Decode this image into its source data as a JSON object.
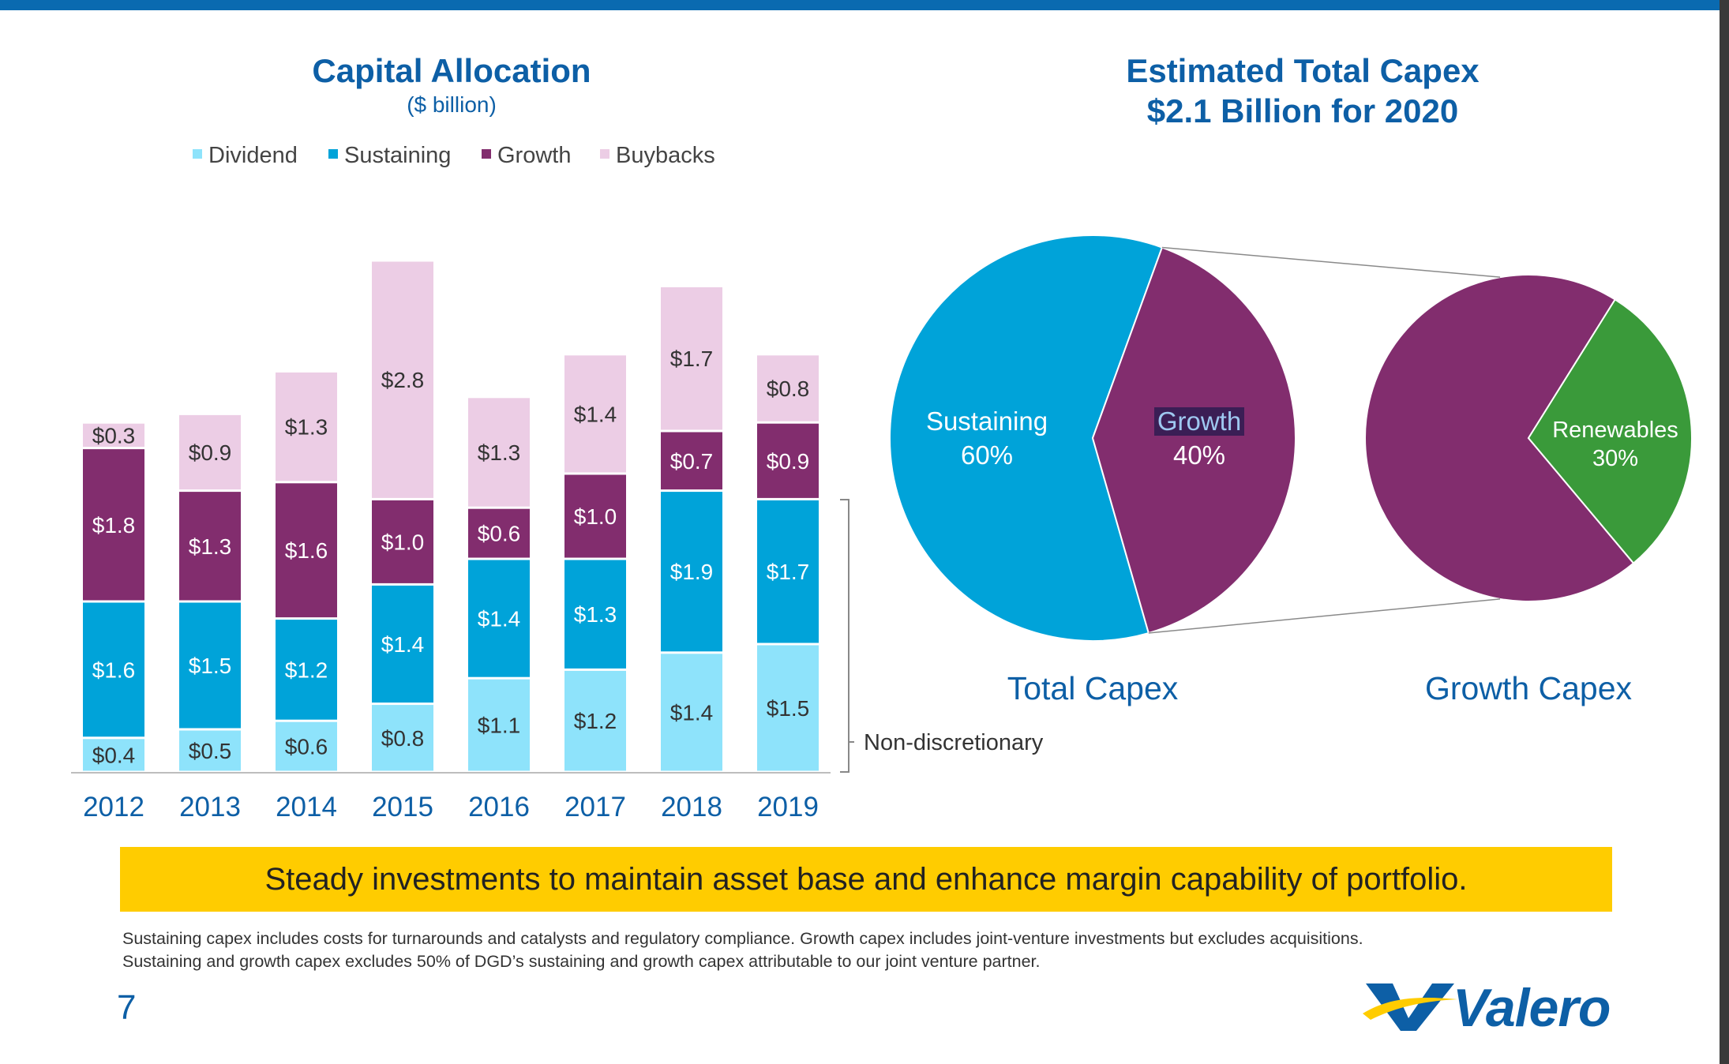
{
  "left_panel": {
    "title": "Capital Allocation",
    "subtitle": "($ billion)",
    "bracket_label": "Non-discretionary"
  },
  "right_panel": {
    "title_line1": "Estimated Total Capex",
    "title_line2": "$2.1 Billion for 2020",
    "pie1_caption": "Total Capex",
    "pie2_caption": "Growth Capex"
  },
  "banner": "Steady investments to maintain asset base and enhance margin capability of portfolio.",
  "footnote_line1": "Sustaining capex includes costs for turnarounds and catalysts and regulatory compliance. Growth capex includes joint-venture investments but excludes acquisitions.",
  "footnote_line2": "Sustaining and growth capex excludes 50% of DGD’s sustaining and growth capex attributable to our joint venture partner.",
  "page_number": "7",
  "logo": "Valero",
  "chart_data": [
    {
      "type": "bar",
      "stacked": true,
      "title": "Capital Allocation",
      "subtitle": "($ billion)",
      "categories": [
        "2012",
        "2013",
        "2014",
        "2015",
        "2016",
        "2017",
        "2018",
        "2019"
      ],
      "series": [
        {
          "name": "Dividend",
          "color": "#8ee3fb",
          "values": [
            0.4,
            0.5,
            0.6,
            0.8,
            1.1,
            1.2,
            1.4,
            1.5
          ],
          "labels": [
            "$0.4",
            "$0.5",
            "$0.6",
            "$0.8",
            "$1.1",
            "$1.2",
            "$1.4",
            "$1.5"
          ],
          "label_color": "#333333"
        },
        {
          "name": "Sustaining",
          "color": "#00a3d9",
          "values": [
            1.6,
            1.5,
            1.2,
            1.4,
            1.4,
            1.3,
            1.9,
            1.7
          ],
          "labels": [
            "$1.6",
            "$1.5",
            "$1.2",
            "$1.4",
            "$1.4",
            "$1.3",
            "$1.9",
            "$1.7"
          ],
          "label_color": "#ffffff"
        },
        {
          "name": "Growth",
          "color": "#822d6e",
          "values": [
            1.8,
            1.3,
            1.6,
            1.0,
            0.6,
            1.0,
            0.7,
            0.9
          ],
          "labels": [
            "$1.8",
            "$1.3",
            "$1.6",
            "$1.0",
            "$0.6",
            "$1.0",
            "$0.7",
            "$0.9"
          ],
          "label_color": "#ffffff"
        },
        {
          "name": "Buybacks",
          "color": "#eccde5",
          "values": [
            0.3,
            0.9,
            1.3,
            2.8,
            1.3,
            1.4,
            1.7,
            0.8
          ],
          "labels": [
            "$0.3",
            "$0.9",
            "$1.3",
            "$2.8",
            "$1.3",
            "$1.4",
            "$1.7",
            "$0.8"
          ],
          "label_color": "#333333"
        }
      ],
      "legend": "top",
      "grid": false
    },
    {
      "type": "pie",
      "caption": "Total Capex",
      "slices": [
        {
          "name": "Sustaining",
          "pct_label": "60%",
          "value": 60,
          "color": "#00a3d9"
        },
        {
          "name": "Growth",
          "pct_label": "40%",
          "value": 40,
          "color": "#822d6e"
        }
      ]
    },
    {
      "type": "pie",
      "caption": "Growth Capex",
      "slices": [
        {
          "name": "Renewables",
          "pct_label": "30%",
          "value": 30,
          "color": "#3a9a3a"
        },
        {
          "name": "",
          "value": 70,
          "color": "#822d6e"
        }
      ]
    }
  ]
}
